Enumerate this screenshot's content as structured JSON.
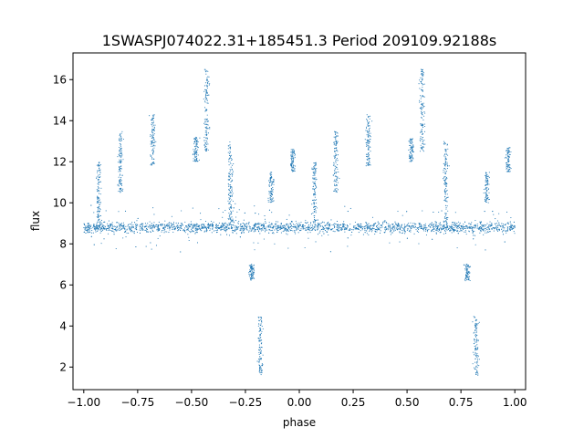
{
  "chart_data": {
    "type": "scatter",
    "title": "1SWASPJ074022.31+185451.3 Period 209109.92188s",
    "xlabel": "phase",
    "ylabel": "flux",
    "xlim": [
      -1.05,
      1.05
    ],
    "ylim": [
      0.9,
      17.3
    ],
    "xticks": [
      -1.0,
      -0.75,
      -0.5,
      -0.25,
      0.0,
      0.25,
      0.5,
      0.75,
      1.0
    ],
    "xtick_labels": [
      "−1.00",
      "−0.75",
      "−0.50",
      "−0.25",
      "0.00",
      "0.25",
      "0.50",
      "0.75",
      "1.00"
    ],
    "yticks": [
      2,
      4,
      6,
      8,
      10,
      12,
      14,
      16
    ],
    "ytick_labels": [
      "2",
      "4",
      "6",
      "8",
      "10",
      "12",
      "14",
      "16"
    ],
    "marker_color": "#1f77b4",
    "grid": false,
    "series": [
      {
        "description": "phase-folded light curve, points repeat with period 1 in phase",
        "baseline_flux": 8.8,
        "baseline_scatter": 0.15,
        "phase_range": [
          -1.0,
          1.0
        ],
        "clusters": [
          {
            "phase": -0.93,
            "flux_range": [
              9.0,
              12.0
            ]
          },
          {
            "phase": -0.83,
            "flux_range": [
              10.5,
              13.5
            ]
          },
          {
            "phase": -0.68,
            "flux_range": [
              11.8,
              14.3
            ]
          },
          {
            "phase": -0.48,
            "flux_range": [
              12.0,
              13.2
            ]
          },
          {
            "phase": -0.43,
            "flux_range": [
              12.5,
              16.5
            ]
          },
          {
            "phase": -0.32,
            "flux_range": [
              9.0,
              13.0
            ]
          },
          {
            "phase": -0.22,
            "flux_range": [
              6.2,
              7.0
            ]
          },
          {
            "phase": -0.18,
            "flux_range": [
              1.6,
              4.5
            ]
          },
          {
            "phase": -0.13,
            "flux_range": [
              10.0,
              11.5
            ]
          },
          {
            "phase": -0.03,
            "flux_range": [
              11.5,
              12.7
            ]
          },
          {
            "phase": 0.07,
            "flux_range": [
              9.0,
              12.0
            ]
          },
          {
            "phase": 0.17,
            "flux_range": [
              10.5,
              13.5
            ]
          },
          {
            "phase": 0.32,
            "flux_range": [
              11.8,
              14.3
            ]
          },
          {
            "phase": 0.52,
            "flux_range": [
              12.0,
              13.2
            ]
          },
          {
            "phase": 0.57,
            "flux_range": [
              12.5,
              16.5
            ]
          },
          {
            "phase": 0.68,
            "flux_range": [
              9.0,
              13.0
            ]
          },
          {
            "phase": 0.78,
            "flux_range": [
              6.2,
              7.0
            ]
          },
          {
            "phase": 0.82,
            "flux_range": [
              1.6,
              4.5
            ]
          },
          {
            "phase": 0.87,
            "flux_range": [
              10.0,
              11.5
            ]
          },
          {
            "phase": 0.97,
            "flux_range": [
              11.5,
              12.7
            ]
          }
        ]
      }
    ]
  }
}
